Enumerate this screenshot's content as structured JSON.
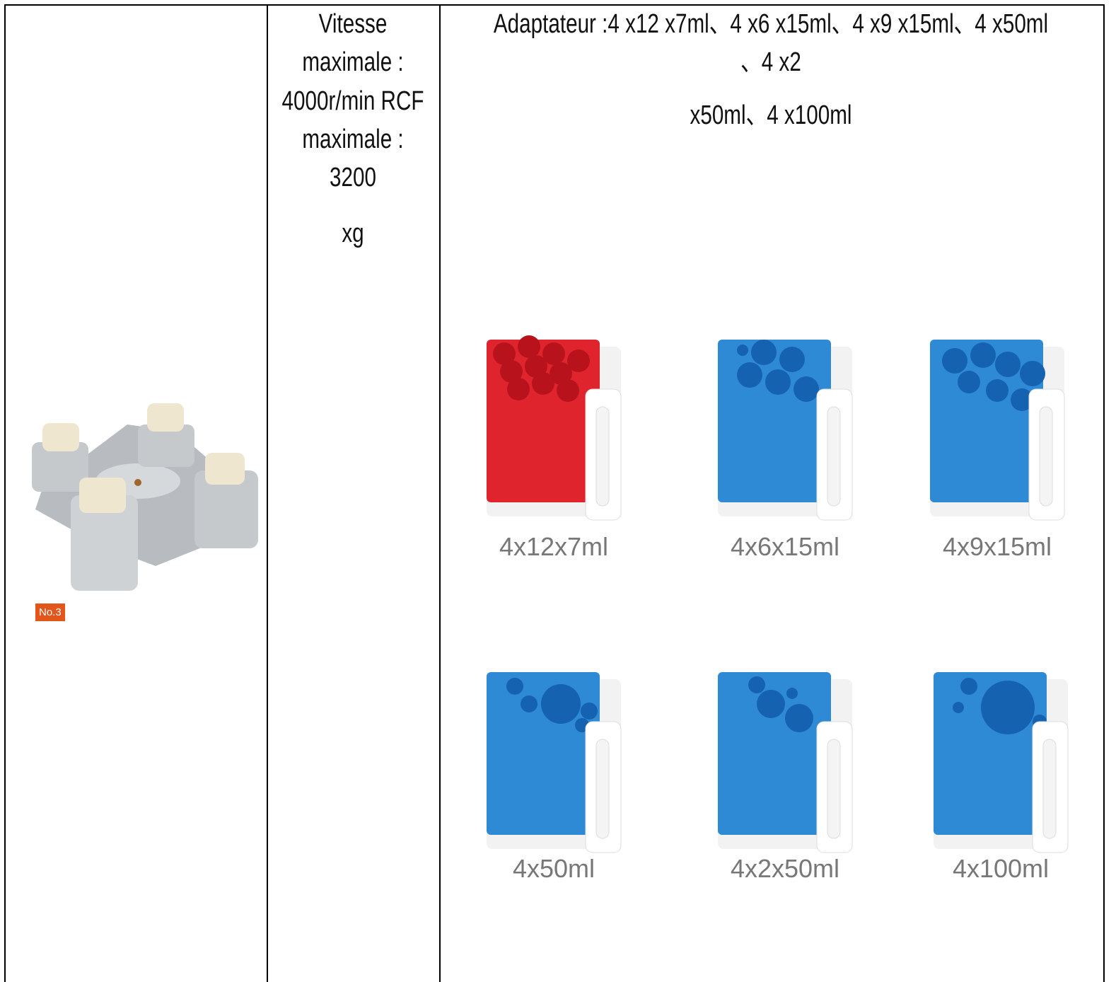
{
  "rotor": {
    "badge": "No.3"
  },
  "specs": {
    "lines": [
      "Vitesse",
      "maximale :",
      "4000r/min RCF",
      "maximale :",
      "3200",
      "xg"
    ]
  },
  "adapters": {
    "lines": [
      "Adaptateur :4 x12 x7ml、4 x6 x15ml、4 x9 x15ml、4 x50ml",
      "、4 x2",
      "x50ml、4 x100ml"
    ],
    "items": [
      {
        "label": "4x12x7ml"
      },
      {
        "label": "4x6x15ml"
      },
      {
        "label": "4x9x15ml"
      },
      {
        "label": "4x50ml"
      },
      {
        "label": "4x2x50ml"
      },
      {
        "label": "4x100ml"
      }
    ]
  }
}
